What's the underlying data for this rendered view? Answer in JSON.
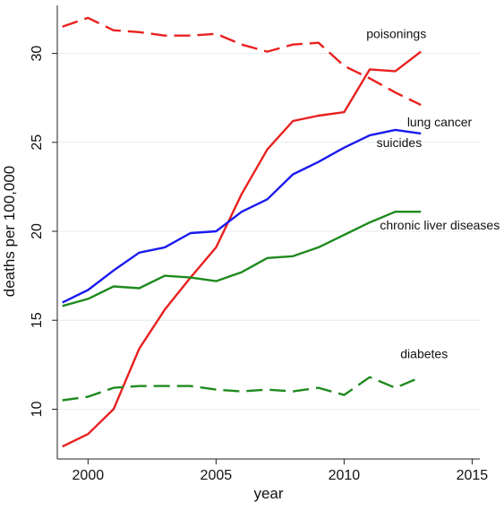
{
  "chart_data": {
    "type": "line",
    "title": "",
    "xlabel": "year",
    "ylabel": "deaths per 100,000",
    "xlim": [
      1998.8,
      2015.3
    ],
    "ylim": [
      7.2,
      32.7
    ],
    "xticks": [
      2000,
      2005,
      2010,
      2015
    ],
    "yticks": [
      10,
      15,
      20,
      25,
      30
    ],
    "grid": true,
    "legend": "none",
    "series": [
      {
        "name": "poisonings",
        "color": "#e8211f",
        "dash": "solid",
        "x": [
          1999,
          2000,
          2001,
          2002,
          2003,
          2004,
          2005,
          2006,
          2007,
          2008,
          2009,
          2010,
          2011,
          2012,
          2013
        ],
        "y": [
          7.9,
          8.6,
          10.0,
          13.4,
          15.6,
          17.4,
          19.1,
          22.1,
          24.6,
          26.2,
          26.5,
          26.7,
          29.1,
          29.0,
          30.1
        ]
      },
      {
        "name": "lung cancer",
        "color": "#e8211f",
        "dash": "dashed",
        "x": [
          1999,
          2000,
          2001,
          2002,
          2003,
          2004,
          2005,
          2006,
          2007,
          2008,
          2009,
          2010,
          2011,
          2012,
          2013
        ],
        "y": [
          31.5,
          32.0,
          31.3,
          31.2,
          31.0,
          31.0,
          31.1,
          30.5,
          30.1,
          30.5,
          30.6,
          29.3,
          28.6,
          27.8,
          27.1
        ]
      },
      {
        "name": "suicides",
        "color": "#1a1aee",
        "dash": "solid",
        "x": [
          1999,
          2000,
          2001,
          2002,
          2003,
          2004,
          2005,
          2006,
          2007,
          2008,
          2009,
          2010,
          2011,
          2012,
          2013
        ],
        "y": [
          16.0,
          16.7,
          17.8,
          18.8,
          19.1,
          19.9,
          20.0,
          21.1,
          21.8,
          23.2,
          23.9,
          24.7,
          25.4,
          25.7,
          25.5
        ]
      },
      {
        "name": "chronic liver diseases",
        "color": "#1f8a1f",
        "dash": "solid",
        "x": [
          1999,
          2000,
          2001,
          2002,
          2003,
          2004,
          2005,
          2006,
          2007,
          2008,
          2009,
          2010,
          2011,
          2012,
          2013
        ],
        "y": [
          15.8,
          16.2,
          16.9,
          16.8,
          17.5,
          17.4,
          17.2,
          17.7,
          18.5,
          18.6,
          19.1,
          19.8,
          20.5,
          21.1,
          21.1
        ]
      },
      {
        "name": "diabetes",
        "color": "#1f8a1f",
        "dash": "dashed",
        "x": [
          1999,
          2000,
          2001,
          2002,
          2003,
          2004,
          2005,
          2006,
          2007,
          2008,
          2009,
          2010,
          2011,
          2012,
          2013
        ],
        "y": [
          10.5,
          10.7,
          11.2,
          11.3,
          11.3,
          11.3,
          11.1,
          11.0,
          11.1,
          11.0,
          11.2,
          10.8,
          11.8,
          11.2,
          11.8
        ]
      }
    ]
  }
}
